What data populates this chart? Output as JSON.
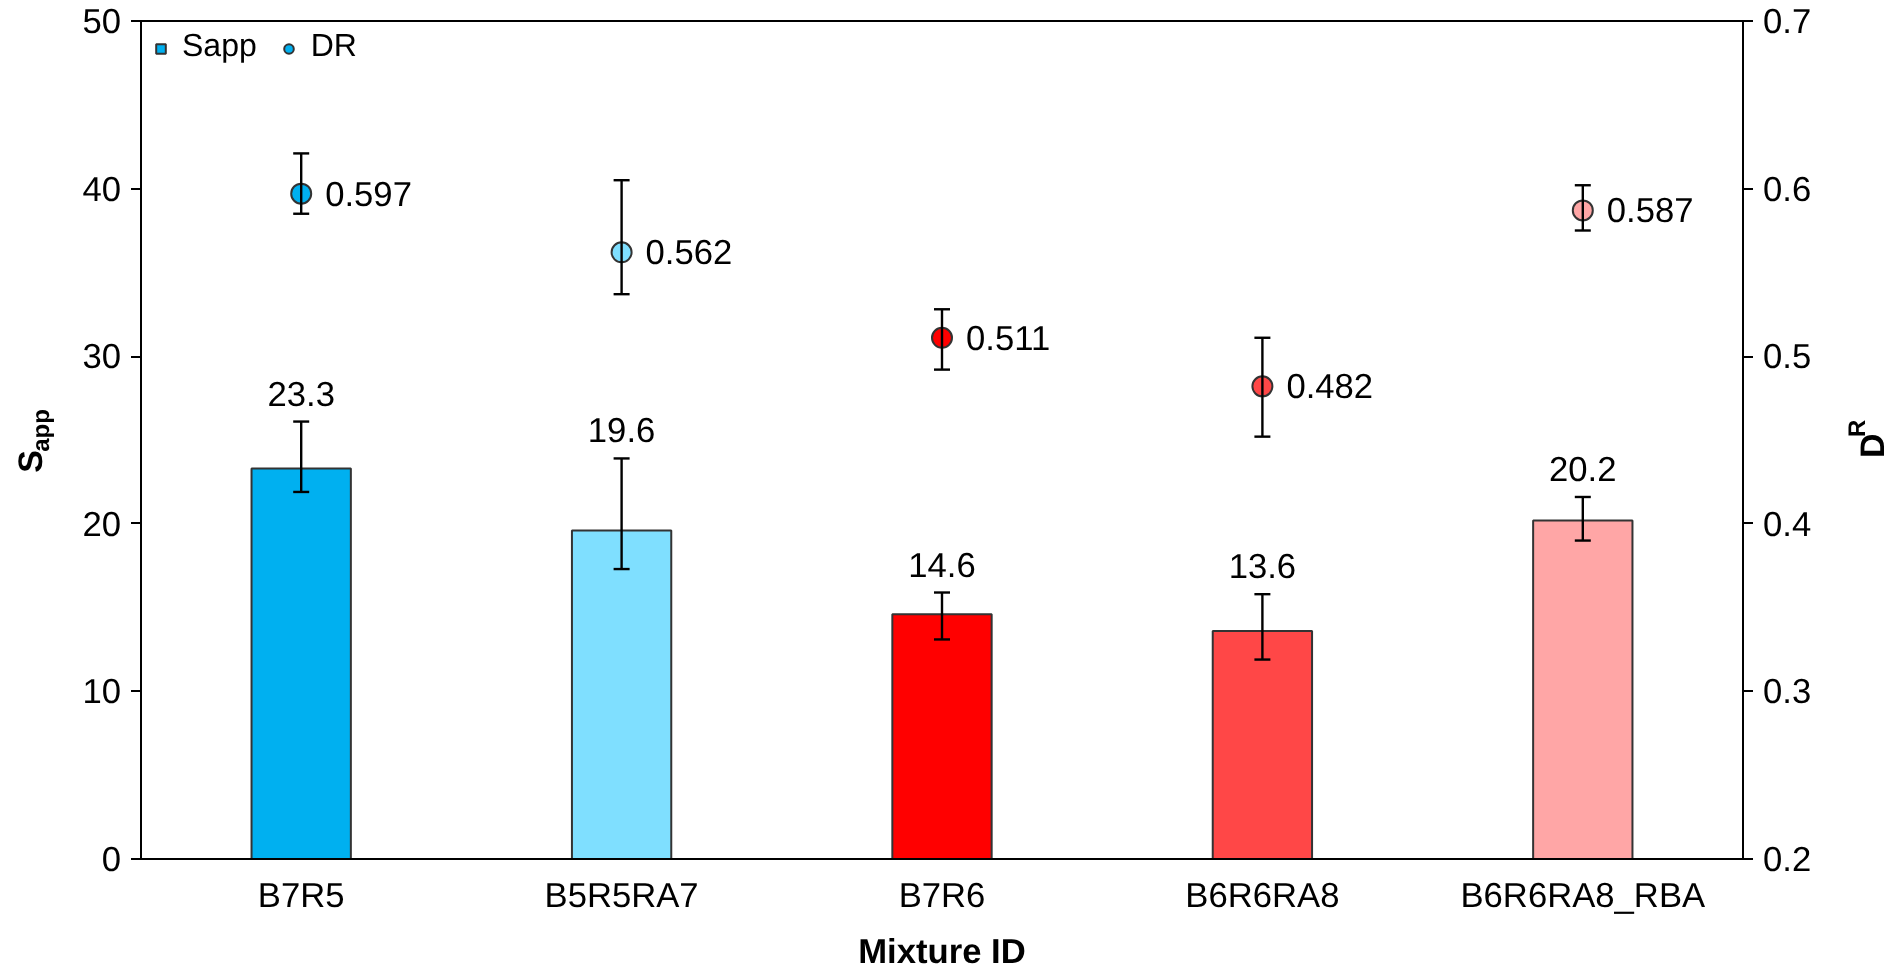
{
  "chart_data": {
    "type": "bar",
    "xlabel": "Mixture ID",
    "ylabel": "S$_{app}$",
    "y2label": "D$^{R}$",
    "categories": [
      "B7R5",
      "B5R5RA7",
      "B7R6",
      "B6R6RA8",
      "B6R6RA8_RBA"
    ],
    "series": [
      {
        "name": "Sapp",
        "type": "bar",
        "colors": [
          "#00b0f0",
          "#7fdfff",
          "#ff0000",
          "#ff4747",
          "#ffa6a6"
        ],
        "values": [
          23.3,
          19.6,
          14.6,
          13.6,
          20.2
        ],
        "errors": [
          [
            21.9,
            26.1
          ],
          [
            17.3,
            23.9
          ],
          [
            13.1,
            15.9
          ],
          [
            11.9,
            15.8
          ],
          [
            19.0,
            21.6
          ]
        ],
        "marker": "square"
      },
      {
        "name": "DR",
        "type": "scatter",
        "axis": "y2",
        "colors": [
          "#00b0f0",
          "#7fdfff",
          "#ff0000",
          "#ff4747",
          "#ffa6a6"
        ],
        "values": [
          0.597,
          0.562,
          0.511,
          0.482,
          0.587
        ],
        "errors": [
          [
            0.585,
            0.621
          ],
          [
            0.537,
            0.605
          ],
          [
            0.492,
            0.528
          ],
          [
            0.452,
            0.511
          ],
          [
            0.575,
            0.602
          ]
        ],
        "marker": "circle"
      }
    ],
    "ylim": [
      0,
      50
    ],
    "yticks": [
      0,
      10,
      20,
      30,
      40,
      50
    ],
    "y2lim": [
      0.2,
      0.7
    ],
    "y2ticks": [
      0.2,
      0.3,
      0.4,
      0.5,
      0.6,
      0.7
    ],
    "data_labels": true,
    "grid": false,
    "legend": "top left"
  }
}
